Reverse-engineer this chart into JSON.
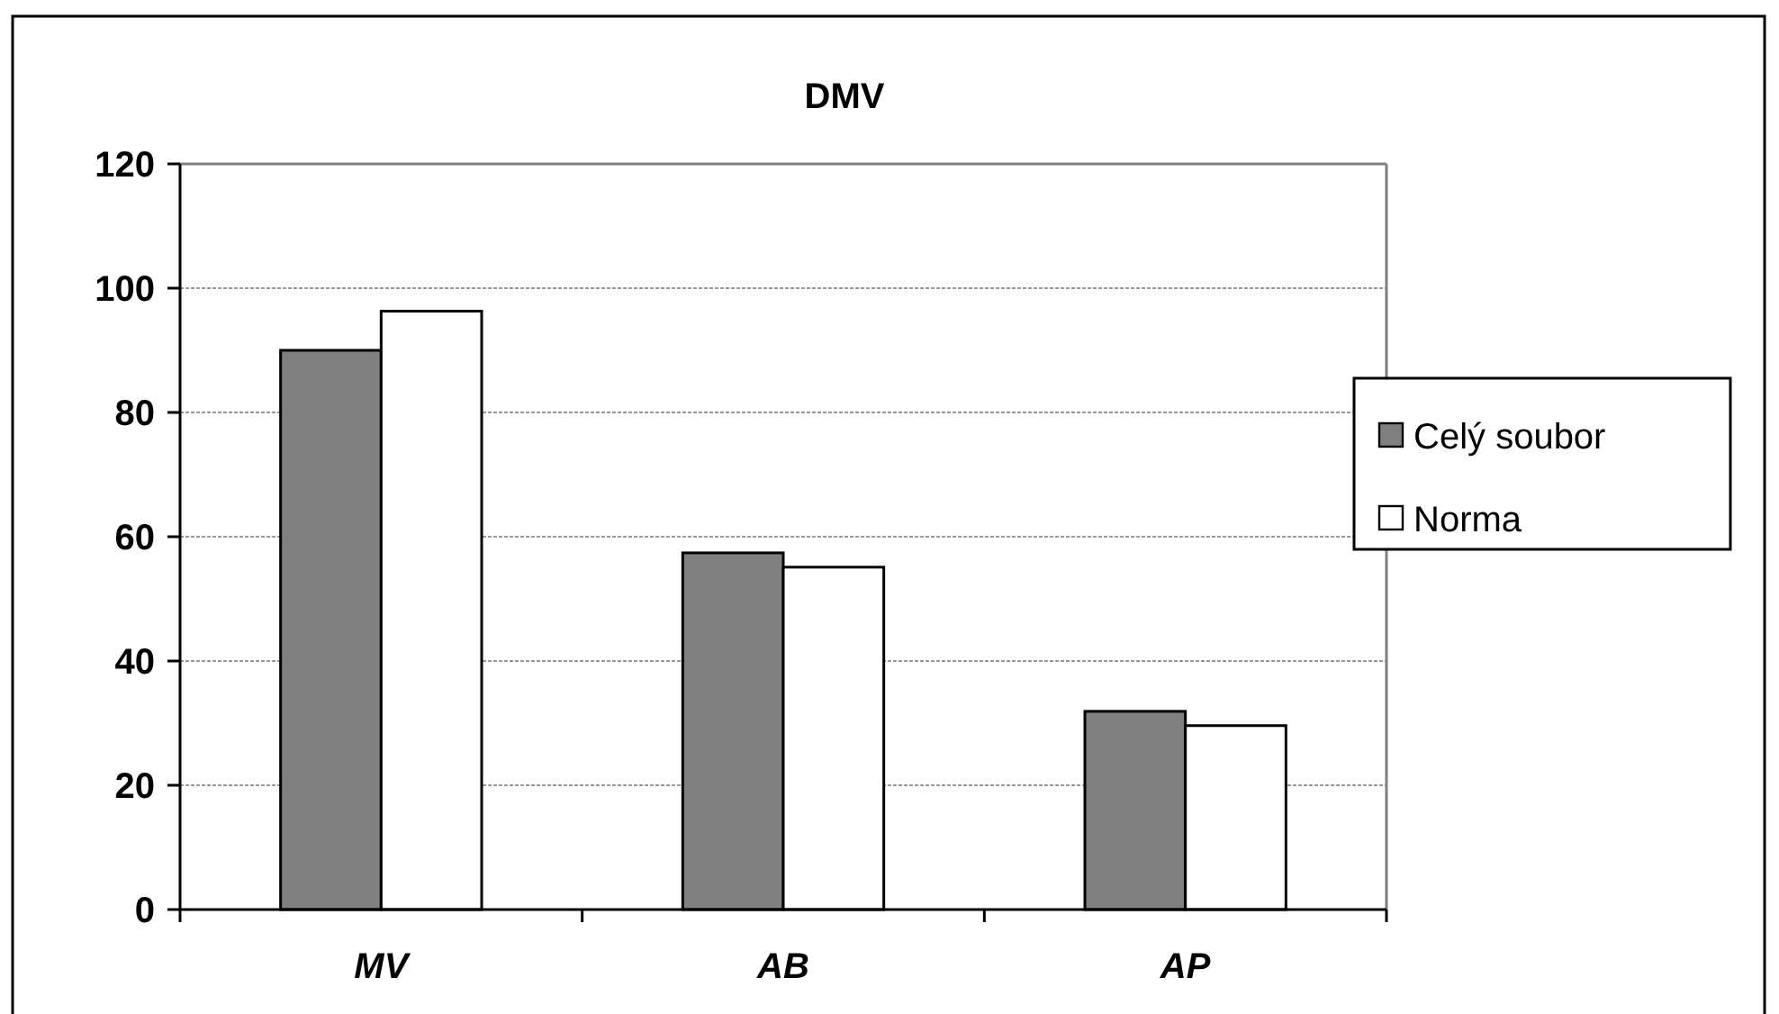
{
  "chart_data": {
    "type": "bar",
    "title": "DMV",
    "categories": [
      "MV",
      "AB",
      "AP"
    ],
    "series": [
      {
        "name": "Celý soubor",
        "color": "#808080",
        "values": [
          90,
          57.4,
          31.9
        ]
      },
      {
        "name": "Norma",
        "color": "#ffffff",
        "values": [
          96.3,
          55.1,
          29.6
        ]
      }
    ],
    "ylim": [
      0,
      120
    ],
    "yticks": [
      0,
      20,
      40,
      60,
      80,
      100,
      120
    ],
    "grid": "y",
    "legend": "right"
  }
}
